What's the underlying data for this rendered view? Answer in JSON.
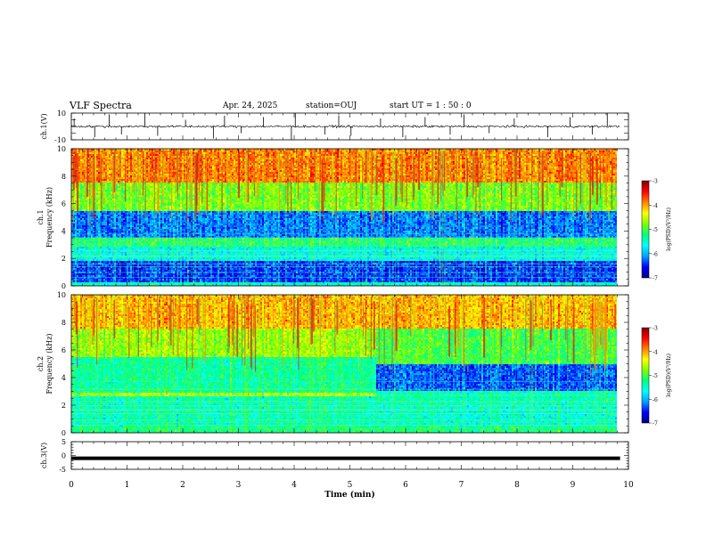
{
  "header": {
    "title": "VLF Spectra",
    "date": "Apr. 24, 2025",
    "station": "station=OUJ",
    "start": "start UT = 1 : 50 : 0"
  },
  "chart_data": [
    {
      "type": "line",
      "name": "ch1-waveform",
      "ylabel": "ch.1(V)",
      "ylim": [
        -10,
        10
      ],
      "ytick_labels": [
        "10",
        "-10"
      ],
      "baseline": 0,
      "noise_amplitude": 1.2,
      "spikes": [
        [
          0.05,
          6
        ],
        [
          0.42,
          -8
        ],
        [
          0.68,
          9
        ],
        [
          0.9,
          -6
        ],
        [
          1.32,
          10
        ],
        [
          1.55,
          -7
        ],
        [
          2.05,
          5
        ],
        [
          2.55,
          -9
        ],
        [
          2.75,
          8
        ],
        [
          3.05,
          -5
        ],
        [
          3.45,
          7
        ],
        [
          3.95,
          -10
        ],
        [
          4.02,
          10
        ],
        [
          4.55,
          -6
        ],
        [
          4.8,
          8
        ],
        [
          5.02,
          -7
        ],
        [
          5.55,
          6
        ],
        [
          5.95,
          -8
        ],
        [
          6.35,
          7
        ],
        [
          6.8,
          -6
        ],
        [
          7.05,
          9
        ],
        [
          7.5,
          -5
        ],
        [
          7.95,
          6
        ],
        [
          8.55,
          -8
        ],
        [
          8.95,
          7
        ],
        [
          9.35,
          -6
        ],
        [
          9.62,
          10
        ]
      ]
    },
    {
      "type": "heatmap",
      "name": "ch1-spectrogram",
      "ylabel_top": "ch.1",
      "ylabel": "Frequency (kHz)",
      "ylim": [
        0,
        10
      ],
      "ytick_labels": [
        "0",
        "2",
        "4",
        "6",
        "8",
        "10"
      ],
      "x_end_min": 9.85,
      "bands": [
        [
          0,
          0.3,
          -5.5
        ],
        [
          0.3,
          1.8,
          -6.4
        ],
        [
          1.8,
          2.8,
          -5.6
        ],
        [
          2.8,
          3.5,
          -5.1
        ],
        [
          3.5,
          5.5,
          -6.2
        ],
        [
          5.5,
          7.5,
          -4.8
        ],
        [
          7.5,
          10,
          -3.9
        ]
      ],
      "burst_count": 170
    },
    {
      "type": "heatmap",
      "name": "ch2-spectrogram",
      "ylabel_top": "ch.2",
      "ylabel": "Frequency (kHz)",
      "ylim": [
        0,
        10
      ],
      "ytick_labels": [
        "0",
        "2",
        "4",
        "6",
        "8",
        "10"
      ],
      "x_end_min": 9.85,
      "bands_before": [
        [
          0,
          0.5,
          -5.2
        ],
        [
          0.5,
          2.6,
          -5.4
        ],
        [
          2.6,
          2.9,
          -4.6
        ],
        [
          2.9,
          5.5,
          -5.3
        ],
        [
          5.5,
          7.5,
          -4.7
        ],
        [
          7.5,
          10,
          -4.1
        ]
      ],
      "bands_after": [
        [
          0,
          0.5,
          -5.2
        ],
        [
          0.5,
          2.0,
          -5.5
        ],
        [
          2.0,
          3.0,
          -5.4
        ],
        [
          3.0,
          5.0,
          -6.3
        ],
        [
          5.0,
          7.5,
          -5.0
        ],
        [
          7.5,
          10,
          -4.1
        ]
      ],
      "change_time_min": 5.45,
      "burst_count": 150
    },
    {
      "type": "line",
      "name": "ch3-waveform",
      "ylabel": "ch.3(V)",
      "ylim": [
        -5,
        5
      ],
      "ytick_labels": [
        "5",
        "0",
        "-5"
      ],
      "level": -1.0
    }
  ],
  "colorbar": {
    "label": "log(PSD)(V²/Hz)",
    "range": [
      -7,
      -3
    ],
    "tick_labels": [
      "-3",
      "-4",
      "-5",
      "-6",
      "-7"
    ],
    "stops": [
      "#000080",
      "#0000ff",
      "#00a0ff",
      "#00ffff",
      "#00ff80",
      "#80ff00",
      "#ffff00",
      "#ff8000",
      "#ff0000",
      "#800000"
    ]
  },
  "xaxis": {
    "label": "Time (min)",
    "range": [
      0,
      10
    ],
    "tick_labels": [
      "0",
      "1",
      "2",
      "3",
      "4",
      "5",
      "6",
      "7",
      "8",
      "9",
      "10"
    ]
  }
}
